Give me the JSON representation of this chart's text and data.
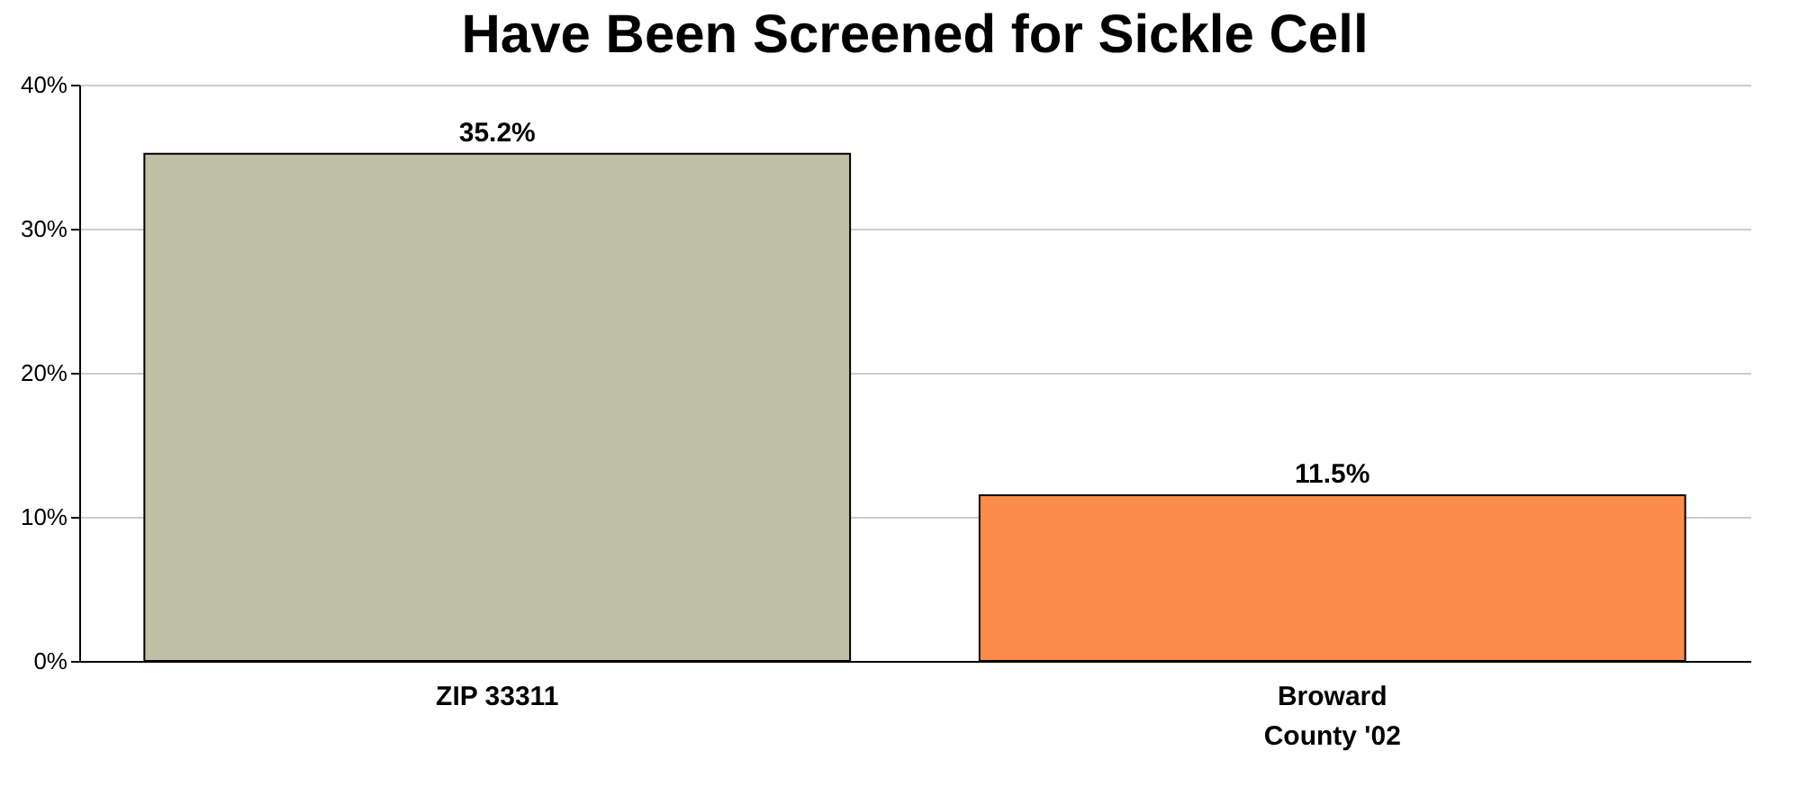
{
  "chart_data": {
    "type": "bar",
    "title": "Have Been Screened for Sickle Cell",
    "categories": [
      "ZIP 33311",
      "Broward\nCounty '02"
    ],
    "values": [
      35.2,
      11.5
    ],
    "colors": [
      "#bfbfa6",
      "#fc8c4c"
    ],
    "value_labels": [
      "35.2%",
      "11.5%"
    ],
    "ylim": [
      0,
      40
    ],
    "yticks": [
      {
        "value": 0,
        "label": "0%"
      },
      {
        "value": 10,
        "label": "10%"
      },
      {
        "value": 20,
        "label": "20%"
      },
      {
        "value": 30,
        "label": "30%"
      },
      {
        "value": 40,
        "label": "40%"
      }
    ],
    "grid": "y"
  }
}
